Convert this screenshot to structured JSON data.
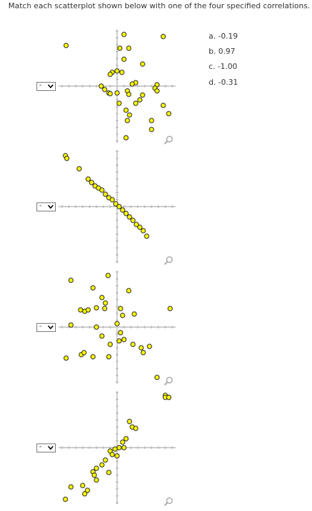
{
  "instruction": "Match each scatterplot shown below with one of the four specified correlations.",
  "selects": [
    "-",
    "-",
    "-",
    "-"
  ],
  "options": [
    "a. -0.19",
    "b. 0.97",
    "c. -1.00",
    "d. -0.31"
  ]
}
